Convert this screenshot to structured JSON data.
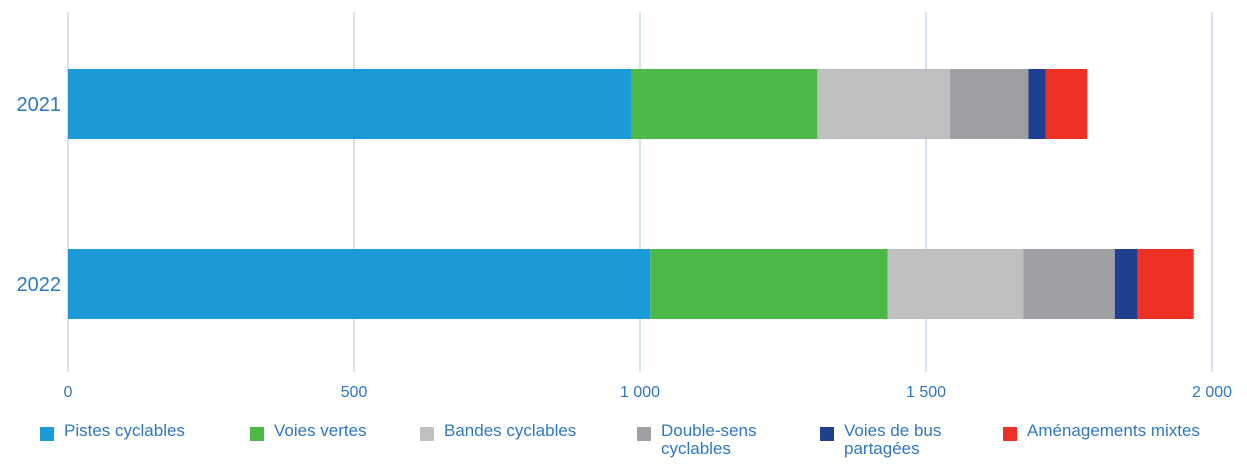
{
  "chart_data": {
    "type": "bar",
    "orientation": "horizontal",
    "stacked": true,
    "categories": [
      "2021",
      "2022"
    ],
    "series": [
      {
        "name": "Pistes cyclables",
        "color": "#1a9ad6",
        "values": [
          985,
          1018
        ]
      },
      {
        "name": "Voies vertes",
        "color": "#4cb848",
        "values": [
          325,
          415
        ]
      },
      {
        "name": "Bandes cyclables",
        "color": "#bdbfc1",
        "values": [
          232,
          237
        ]
      },
      {
        "name": "Double-sens\ncyclables",
        "color": "#9d9fa2",
        "values": [
          137,
          160
        ]
      },
      {
        "name": "Voies de bus\npartagées",
        "color": "#1f3f8f",
        "values": [
          30,
          40
        ]
      },
      {
        "name": "Aménagements mixtes",
        "color": "#ee3124",
        "values": [
          73,
          98
        ]
      }
    ],
    "x_ticks": [
      "0",
      "500",
      "1 000",
      "1 500",
      "2 000"
    ],
    "x_tick_values": [
      0,
      500,
      1000,
      1500,
      2000
    ],
    "xlim": [
      0,
      2000
    ],
    "grid": "vertical",
    "legend_position": "bottom",
    "title": "",
    "xlabel": "",
    "ylabel": "",
    "colors": {
      "grid": "#b9cde6",
      "tick_text": "#2f78be"
    }
  }
}
